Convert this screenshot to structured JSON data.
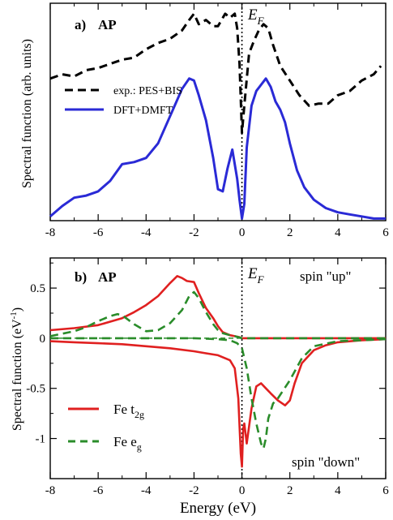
{
  "chart_data": [
    {
      "type": "line",
      "panel_label": "a)",
      "panel_title": "AP",
      "ylabel": "Spectral function (arb. units)",
      "xlim": [
        -8,
        6
      ],
      "x_ticks": [
        "-8",
        "-6",
        "-4",
        "-2",
        "0",
        "2",
        "4",
        "6"
      ],
      "fermi_label": "E",
      "fermi_sub": "F",
      "legend": [
        {
          "label": "exp.: PES+BIS",
          "style": "dashed",
          "color": "#000000"
        },
        {
          "label": "DFT+DMFT",
          "style": "solid",
          "color": "#2a2ad6"
        }
      ],
      "series": [
        {
          "name": "exp.: PES+BIS",
          "style": "dashed",
          "color": "#000000",
          "x": [
            -8.0,
            -7.5,
            -7.0,
            -6.5,
            -6.0,
            -5.5,
            -5.0,
            -4.5,
            -4.0,
            -3.5,
            -3.0,
            -2.5,
            -2.2,
            -2.0,
            -1.8,
            -1.5,
            -1.2,
            -1.0,
            -0.7,
            -0.5,
            -0.3,
            -0.2,
            -0.1,
            0.0,
            0.1,
            0.3,
            0.5,
            0.7,
            0.9,
            1.1,
            1.3,
            1.6,
            2.0,
            2.4,
            2.8,
            3.2,
            3.6,
            4.0,
            4.5,
            5.0,
            5.5,
            5.8
          ],
          "values": [
            0.68,
            0.7,
            0.69,
            0.72,
            0.73,
            0.75,
            0.77,
            0.78,
            0.82,
            0.85,
            0.87,
            0.91,
            0.96,
            0.99,
            0.94,
            0.96,
            0.93,
            0.93,
            0.99,
            0.97,
            0.99,
            0.92,
            0.75,
            0.42,
            0.55,
            0.8,
            0.86,
            0.91,
            0.94,
            0.92,
            0.84,
            0.74,
            0.67,
            0.6,
            0.55,
            0.56,
            0.56,
            0.6,
            0.62,
            0.67,
            0.7,
            0.74
          ]
        },
        {
          "name": "DFT+DMFT",
          "style": "solid",
          "color": "#2a2ad6",
          "x": [
            -8.0,
            -7.5,
            -7.0,
            -6.5,
            -6.0,
            -5.5,
            -5.0,
            -4.5,
            -4.0,
            -3.5,
            -3.0,
            -2.5,
            -2.2,
            -2.0,
            -1.8,
            -1.5,
            -1.2,
            -1.0,
            -0.8,
            -0.6,
            -0.4,
            -0.2,
            -0.1,
            0.0,
            0.1,
            0.2,
            0.4,
            0.6,
            0.8,
            1.0,
            1.2,
            1.4,
            1.6,
            1.8,
            2.0,
            2.3,
            2.6,
            3.0,
            3.5,
            4.0,
            4.5,
            5.0,
            5.5,
            6.0
          ],
          "values": [
            0.02,
            0.07,
            0.11,
            0.12,
            0.14,
            0.19,
            0.27,
            0.28,
            0.3,
            0.37,
            0.5,
            0.63,
            0.68,
            0.67,
            0.6,
            0.48,
            0.3,
            0.15,
            0.14,
            0.25,
            0.34,
            0.2,
            0.1,
            0.01,
            0.08,
            0.35,
            0.55,
            0.62,
            0.65,
            0.68,
            0.64,
            0.57,
            0.53,
            0.47,
            0.37,
            0.24,
            0.16,
            0.1,
            0.06,
            0.04,
            0.03,
            0.02,
            0.01,
            0.01
          ]
        }
      ]
    },
    {
      "type": "line",
      "panel_label": "b)",
      "panel_title": "AP",
      "ylabel": "Spectral function (eV",
      "ylabel_sup": "-1",
      "ylabel_tail": ")",
      "xlabel": "Energy (eV)",
      "xlim": [
        -8,
        6
      ],
      "ylim": [
        -1.4,
        0.8
      ],
      "x_ticks": [
        "-8",
        "-6",
        "-4",
        "-2",
        "0",
        "2",
        "4",
        "6"
      ],
      "y_ticks": [
        {
          "value": 0.5,
          "label": "0.5"
        },
        {
          "value": 0,
          "label": "0"
        },
        {
          "value": -0.5,
          "label": "-0.5"
        },
        {
          "value": -1,
          "label": "-1"
        }
      ],
      "fermi_label": "E",
      "fermi_sub": "F",
      "annotations": {
        "spin_up": "spin \"up\"",
        "spin_down": "spin \"down\""
      },
      "legend": [
        {
          "label": "Fe t",
          "sub": "2g",
          "style": "solid",
          "color": "#e02020"
        },
        {
          "label": "Fe e",
          "sub": "g",
          "style": "dashed",
          "color": "#2a8c2a"
        }
      ],
      "series": [
        {
          "name": "Fe t2g spin up",
          "style": "solid",
          "color": "#e02020",
          "x": [
            -8.0,
            -7.0,
            -6.0,
            -5.0,
            -4.5,
            -4.0,
            -3.5,
            -3.0,
            -2.7,
            -2.5,
            -2.3,
            -2.0,
            -1.8,
            -1.5,
            -1.2,
            -1.0,
            -0.8,
            -0.5,
            -0.3,
            -0.1,
            0.0,
            0.5,
            1.0,
            2.0,
            3.0,
            4.0,
            5.0,
            6.0
          ],
          "values": [
            0.08,
            0.1,
            0.13,
            0.2,
            0.26,
            0.33,
            0.42,
            0.55,
            0.62,
            0.6,
            0.57,
            0.56,
            0.45,
            0.3,
            0.2,
            0.12,
            0.06,
            0.03,
            0.02,
            0.01,
            0.0,
            0.0,
            0.0,
            0.0,
            0.0,
            0.0,
            0.0,
            0.0
          ]
        },
        {
          "name": "Fe t2g spin down",
          "style": "solid",
          "color": "#e02020",
          "x": [
            -8.0,
            -7.0,
            -6.0,
            -5.0,
            -4.0,
            -3.0,
            -2.0,
            -1.5,
            -1.0,
            -0.5,
            -0.3,
            -0.15,
            -0.05,
            0.0,
            0.05,
            0.1,
            0.2,
            0.4,
            0.6,
            0.8,
            1.0,
            1.2,
            1.5,
            1.8,
            2.0,
            2.2,
            2.5,
            3.0,
            3.5,
            4.0,
            5.0,
            6.0
          ],
          "values": [
            -0.03,
            -0.04,
            -0.05,
            -0.06,
            -0.08,
            -0.1,
            -0.13,
            -0.15,
            -0.17,
            -0.22,
            -0.3,
            -0.6,
            -1.15,
            -1.28,
            -0.9,
            -0.85,
            -1.05,
            -0.7,
            -0.48,
            -0.45,
            -0.5,
            -0.55,
            -0.62,
            -0.67,
            -0.62,
            -0.45,
            -0.25,
            -0.12,
            -0.07,
            -0.04,
            -0.02,
            -0.01
          ]
        },
        {
          "name": "Fe eg spin up",
          "style": "dashed",
          "color": "#2a8c2a",
          "x": [
            -8.0,
            -7.0,
            -6.5,
            -6.0,
            -5.5,
            -5.2,
            -5.0,
            -4.5,
            -4.0,
            -3.5,
            -3.0,
            -2.5,
            -2.2,
            -2.0,
            -1.8,
            -1.5,
            -1.2,
            -1.0,
            -0.8,
            -0.5,
            -0.3,
            0.0,
            1.0,
            2.0,
            3.0,
            4.0,
            5.0,
            6.0
          ],
          "values": [
            0.02,
            0.07,
            0.11,
            0.17,
            0.22,
            0.24,
            0.23,
            0.14,
            0.07,
            0.08,
            0.15,
            0.28,
            0.42,
            0.46,
            0.4,
            0.26,
            0.14,
            0.08,
            0.05,
            0.03,
            0.02,
            0.0,
            0.0,
            0.0,
            0.0,
            0.0,
            0.0,
            0.0
          ]
        },
        {
          "name": "Fe eg spin down",
          "style": "dashed",
          "color": "#2a8c2a",
          "x": [
            -8.0,
            -6.0,
            -4.0,
            -2.0,
            -1.0,
            -0.5,
            -0.2,
            0.0,
            0.2,
            0.4,
            0.6,
            0.8,
            0.9,
            1.0,
            1.1,
            1.3,
            1.5,
            2.0,
            2.5,
            3.0,
            4.0,
            5.0,
            6.0
          ],
          "values": [
            0.0,
            0.0,
            0.0,
            0.0,
            -0.01,
            -0.02,
            -0.05,
            -0.1,
            -0.3,
            -0.6,
            -0.85,
            -1.05,
            -1.1,
            -1.0,
            -0.8,
            -0.65,
            -0.6,
            -0.42,
            -0.2,
            -0.08,
            -0.03,
            -0.02,
            -0.01
          ]
        }
      ]
    }
  ]
}
